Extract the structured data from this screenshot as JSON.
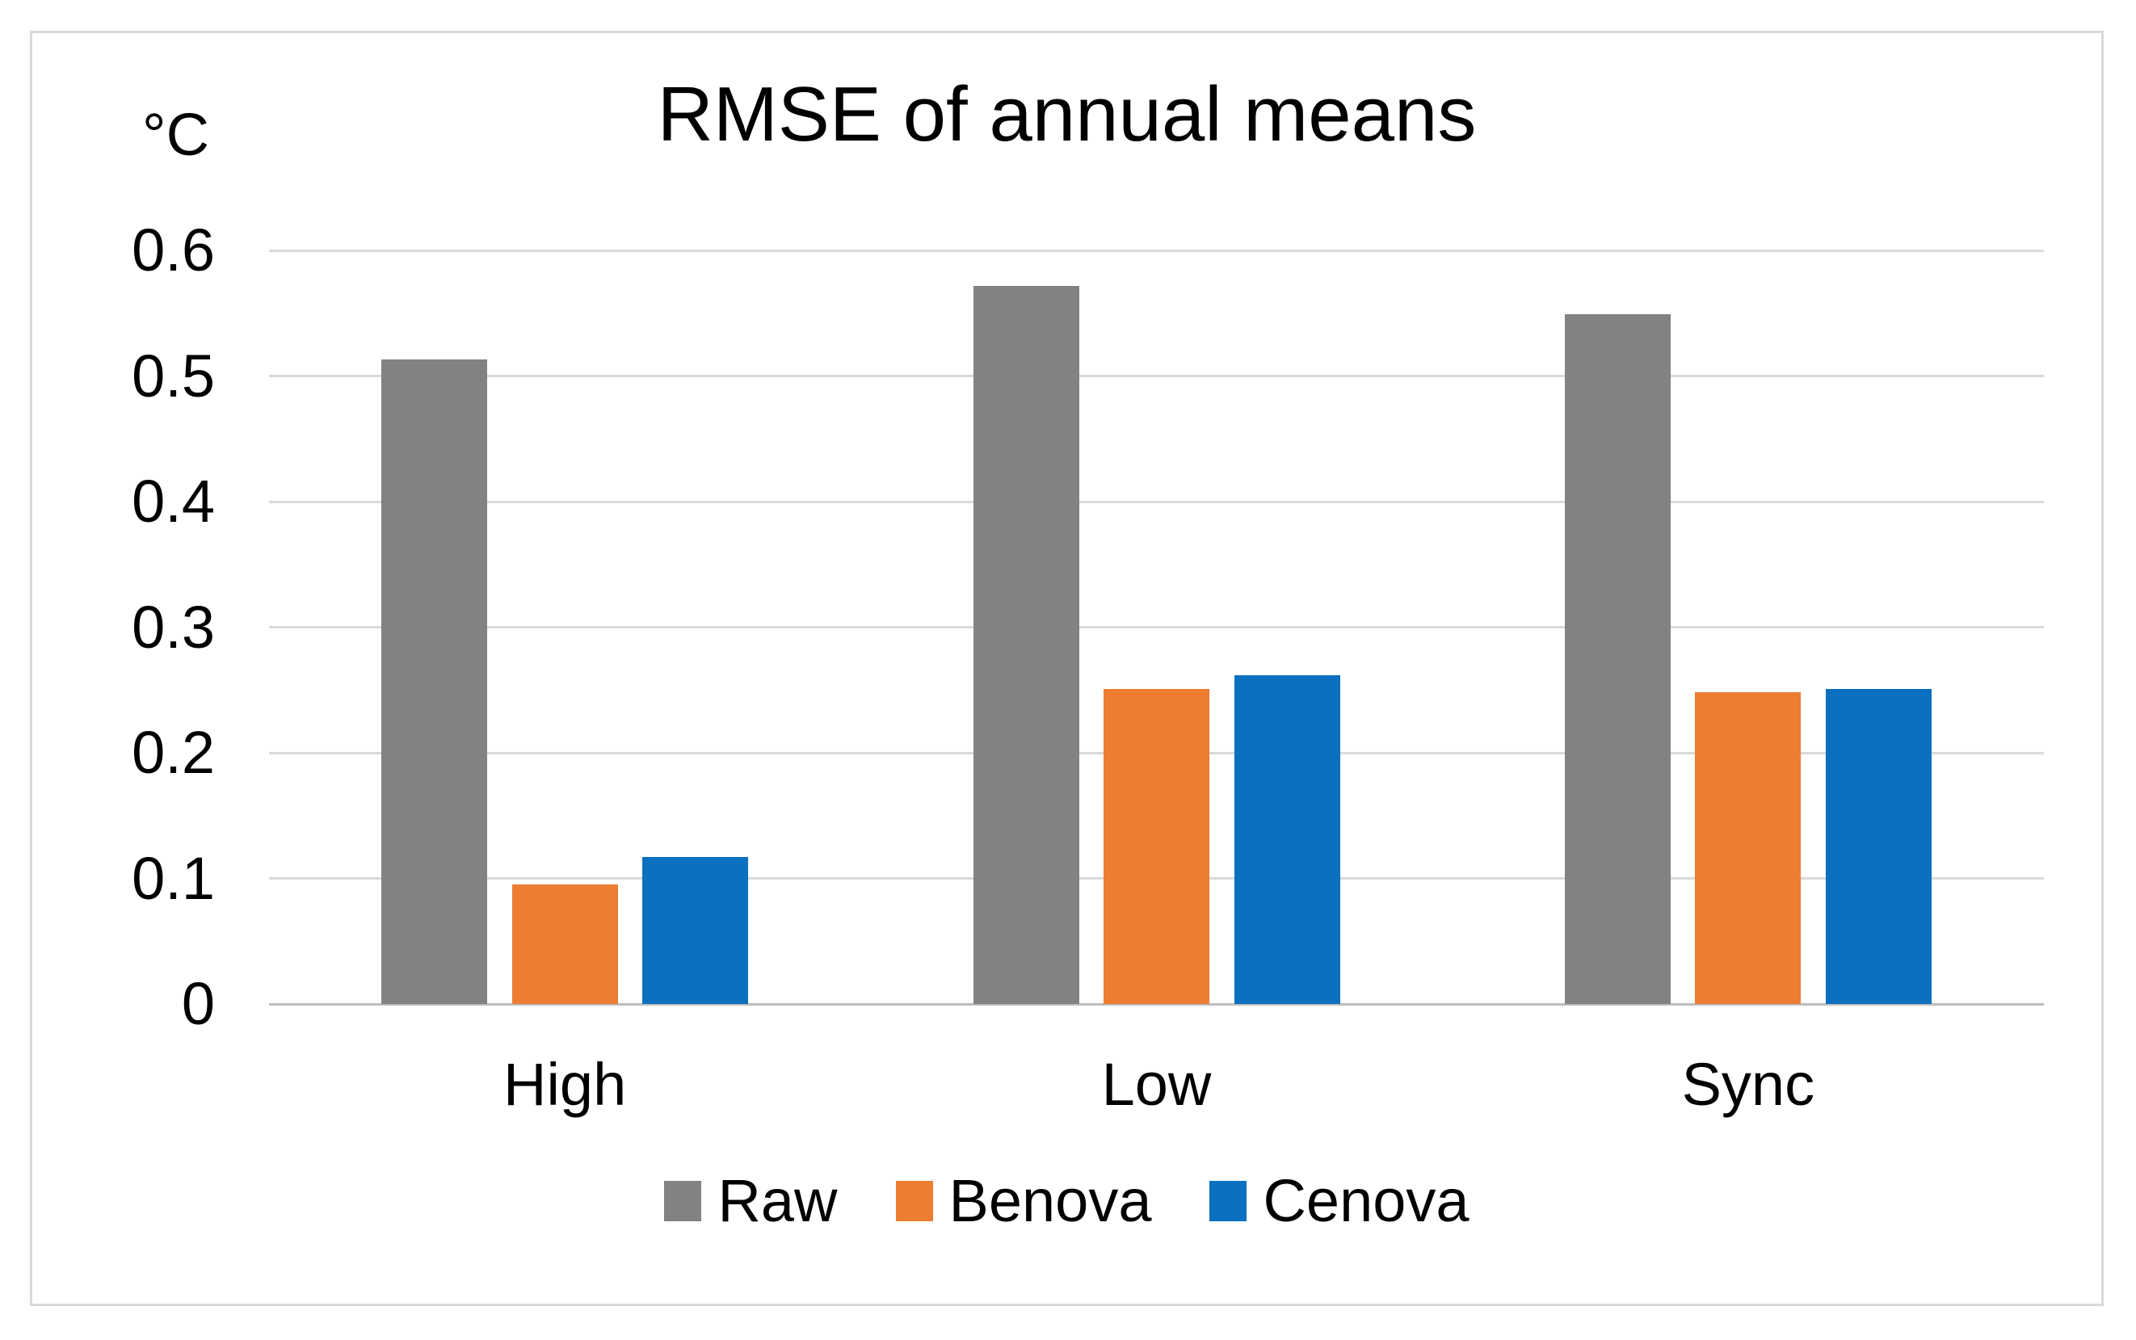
{
  "chart_data": {
    "type": "bar",
    "title": "RMSE of annual means",
    "unit": "°C",
    "categories": [
      "High",
      "Low",
      "Sync"
    ],
    "series": [
      {
        "name": "Raw",
        "color": "#828282",
        "values": [
          0.513,
          0.572,
          0.549
        ]
      },
      {
        "name": "Benova",
        "color": "#ED7D31",
        "values": [
          0.095,
          0.251,
          0.248
        ]
      },
      {
        "name": "Cenova",
        "color": "#0B70C0",
        "values": [
          0.117,
          0.262,
          0.251
        ]
      }
    ],
    "ylim": [
      0,
      0.6
    ],
    "yticks": [
      {
        "value": 0.6,
        "label": "0.6"
      },
      {
        "value": 0.5,
        "label": "0.5"
      },
      {
        "value": 0.4,
        "label": "0.4"
      },
      {
        "value": 0.3,
        "label": "0.3"
      },
      {
        "value": 0.2,
        "label": "0.2"
      },
      {
        "value": 0.1,
        "label": "0.1"
      },
      {
        "value": 0.0,
        "label": "0"
      }
    ],
    "grid": true,
    "legend_position": "bottom",
    "colors": {
      "gridline": "#D9D9D9",
      "axis_line": "#BDBDBD",
      "frame_border": "#D9D9D9",
      "text": "#000000"
    }
  }
}
